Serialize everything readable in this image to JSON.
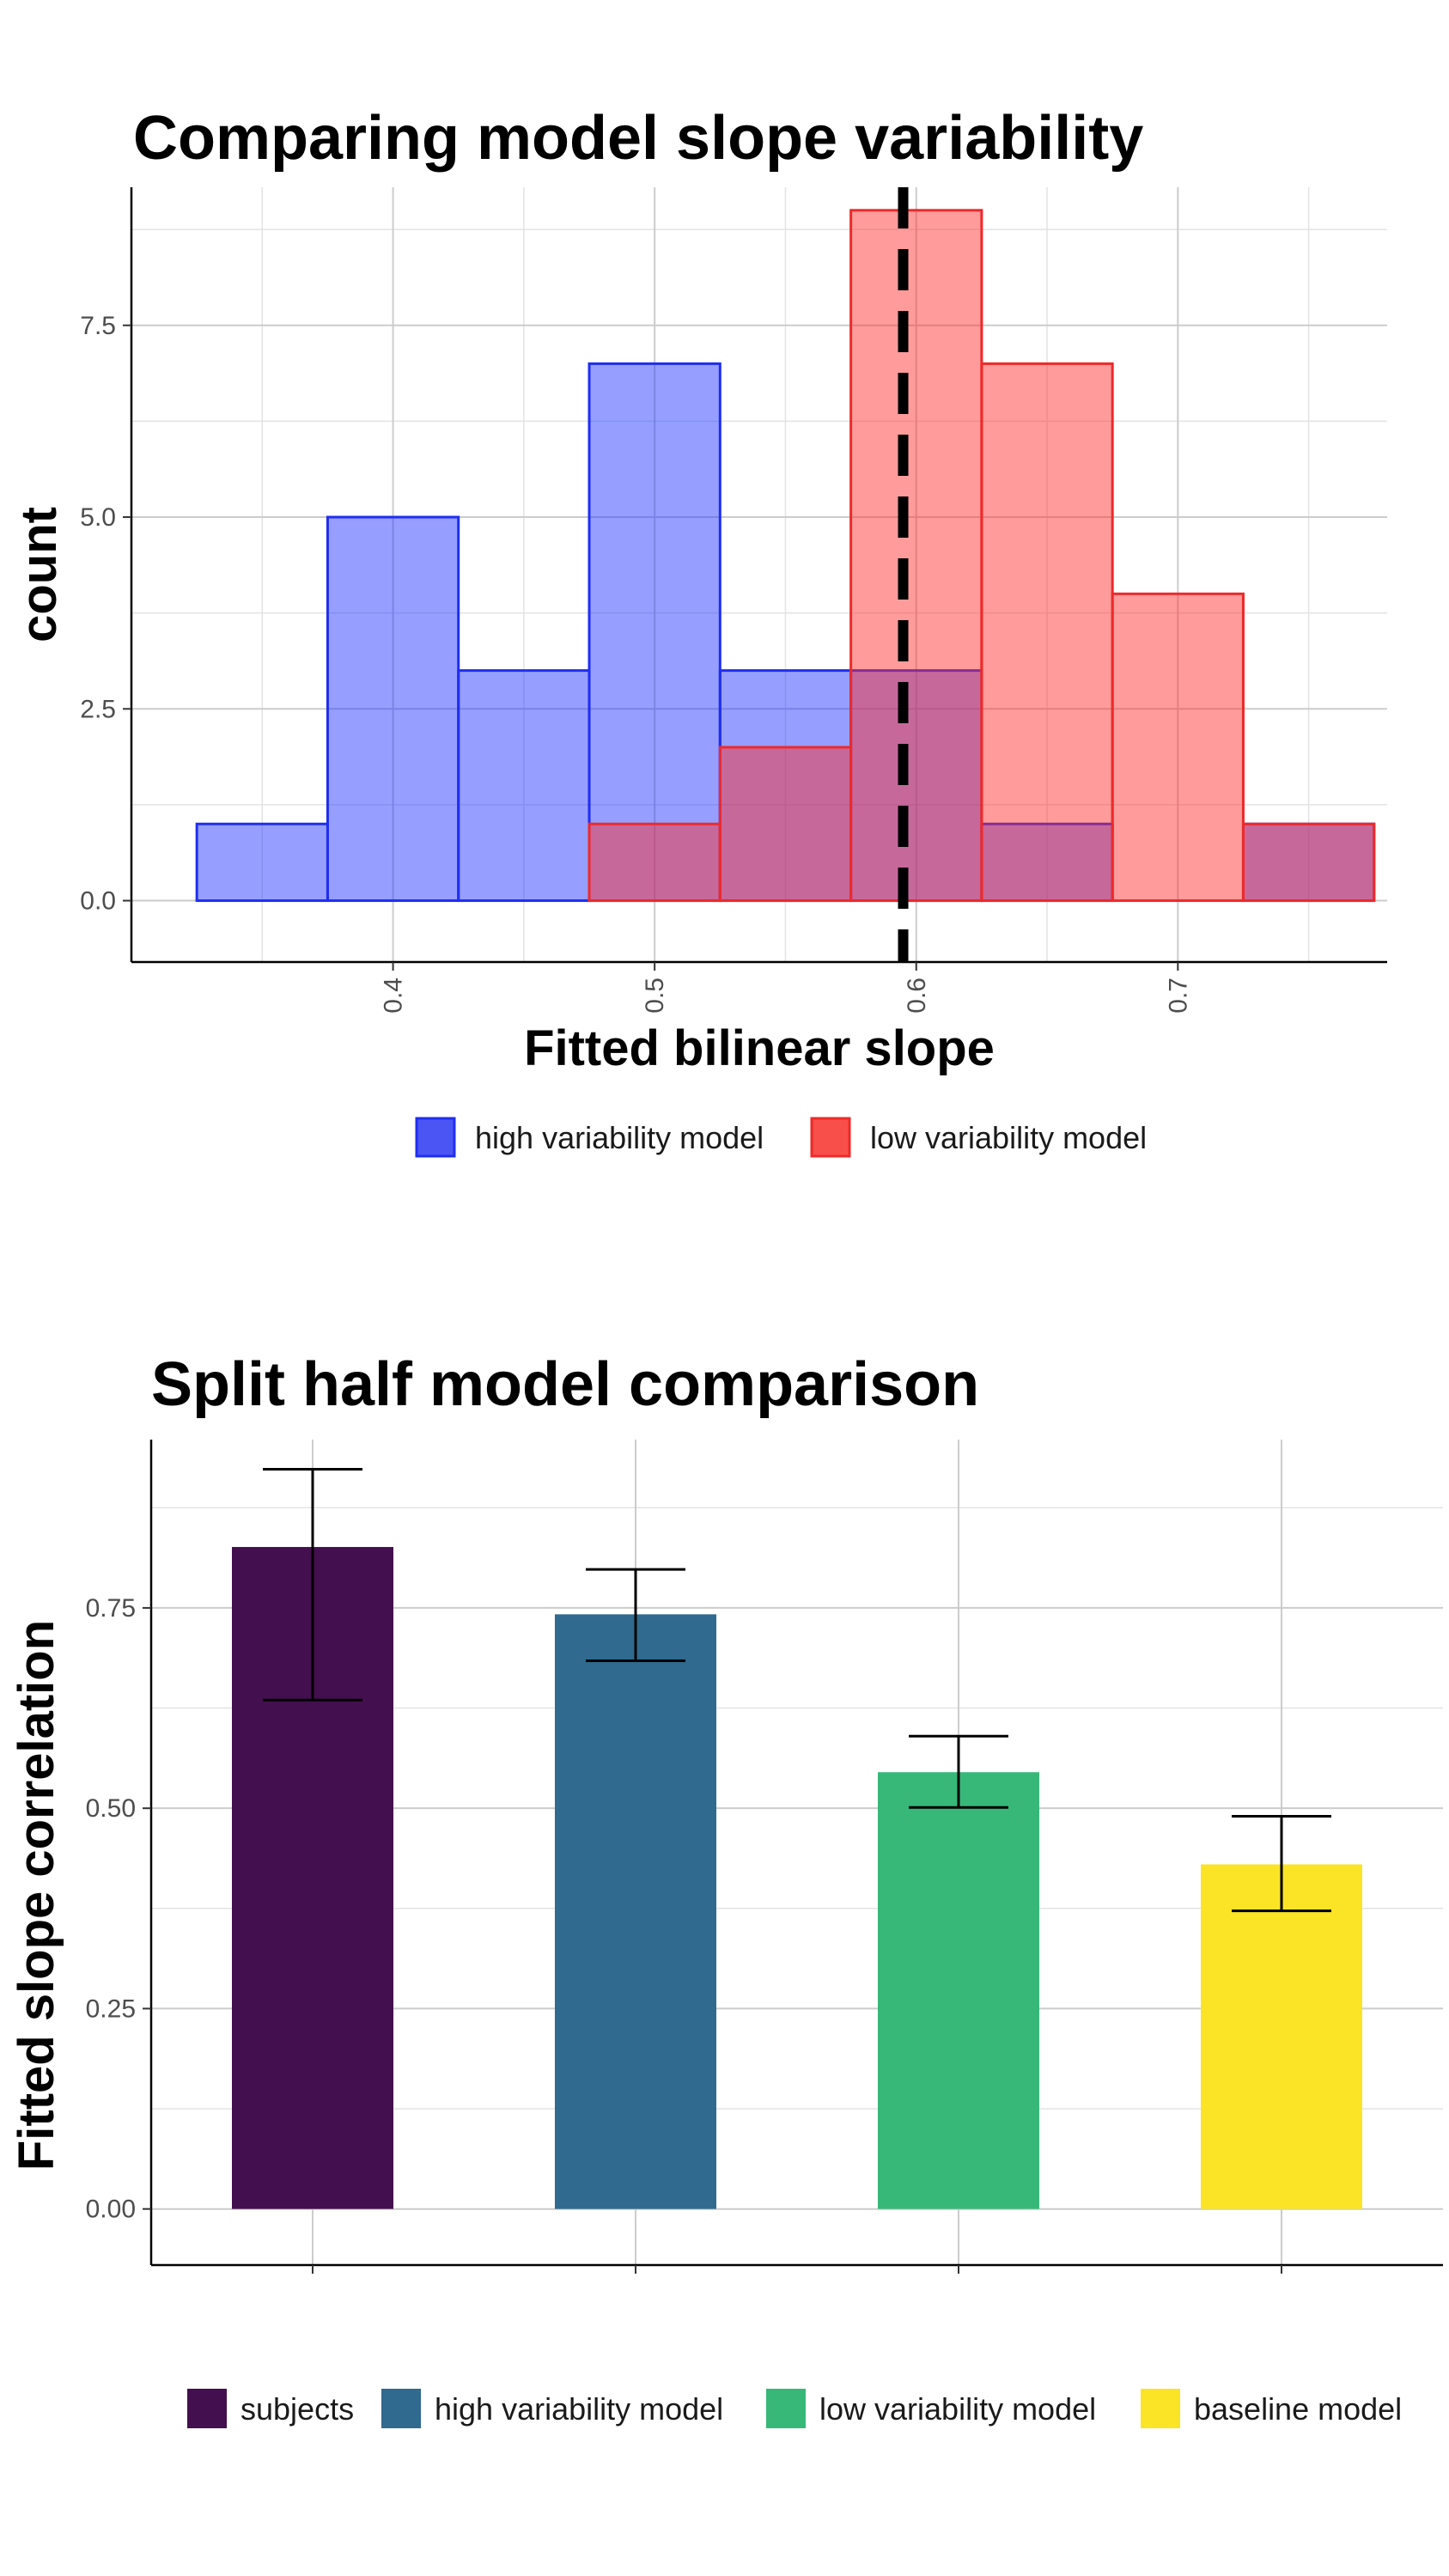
{
  "chart_data": [
    {
      "type": "histogram",
      "title": "Comparing model slope variability",
      "xlabel": "Fitted bilinear slope",
      "ylabel": "count",
      "xlim": [
        0.3,
        0.78
      ],
      "ylim": [
        -0.8,
        9.3
      ],
      "x_ticks": [
        "0.4",
        "0.5",
        "0.6",
        "0.7"
      ],
      "x_tick_values": [
        0.4,
        0.5,
        0.6,
        0.7
      ],
      "y_ticks": [
        "0.0",
        "2.5",
        "5.0",
        "7.5"
      ],
      "y_tick_values": [
        0,
        2.5,
        5,
        7.5
      ],
      "grid": true,
      "legend_position": "bottom",
      "reference_line": {
        "x": 0.595,
        "style": "dashed",
        "color": "#000000"
      },
      "series": [
        {
          "name": "high variability model",
          "color": "#1f32ff",
          "bins": [
            {
              "x0": 0.325,
              "x1": 0.375,
              "count": 1
            },
            {
              "x0": 0.375,
              "x1": 0.425,
              "count": 5
            },
            {
              "x0": 0.425,
              "x1": 0.475,
              "count": 3
            },
            {
              "x0": 0.475,
              "x1": 0.525,
              "count": 7
            },
            {
              "x0": 0.525,
              "x1": 0.575,
              "count": 3
            },
            {
              "x0": 0.575,
              "x1": 0.625,
              "count": 3
            },
            {
              "x0": 0.625,
              "x1": 0.675,
              "count": 1
            },
            {
              "x0": 0.725,
              "x1": 0.775,
              "count": 1
            }
          ]
        },
        {
          "name": "low variability model",
          "color": "#ff2a2a",
          "bins": [
            {
              "x0": 0.475,
              "x1": 0.525,
              "count": 1
            },
            {
              "x0": 0.525,
              "x1": 0.575,
              "count": 2
            },
            {
              "x0": 0.575,
              "x1": 0.625,
              "count": 9
            },
            {
              "x0": 0.625,
              "x1": 0.675,
              "count": 7
            },
            {
              "x0": 0.675,
              "x1": 0.725,
              "count": 4
            },
            {
              "x0": 0.725,
              "x1": 0.775,
              "count": 1
            }
          ]
        }
      ]
    },
    {
      "type": "bar",
      "title": "Split half model comparison",
      "xlabel": "",
      "ylabel": "Fitted slope correlation",
      "ylim": [
        -0.07,
        0.96
      ],
      "y_ticks": [
        "0.00",
        "0.25",
        "0.50",
        "0.75"
      ],
      "y_tick_values": [
        0,
        0.25,
        0.5,
        0.75
      ],
      "grid": true,
      "legend_position": "bottom",
      "categories": [
        "subjects",
        "high variability model",
        "low variability model",
        "baseline model"
      ],
      "values": [
        0.826,
        0.742,
        0.545,
        0.43
      ],
      "error_low": [
        0.635,
        0.684,
        0.501,
        0.372
      ],
      "error_high": [
        0.923,
        0.798,
        0.59,
        0.49
      ],
      "colors": [
        "#440f4e",
        "#306a8e",
        "#37b878",
        "#fbe426"
      ]
    }
  ]
}
